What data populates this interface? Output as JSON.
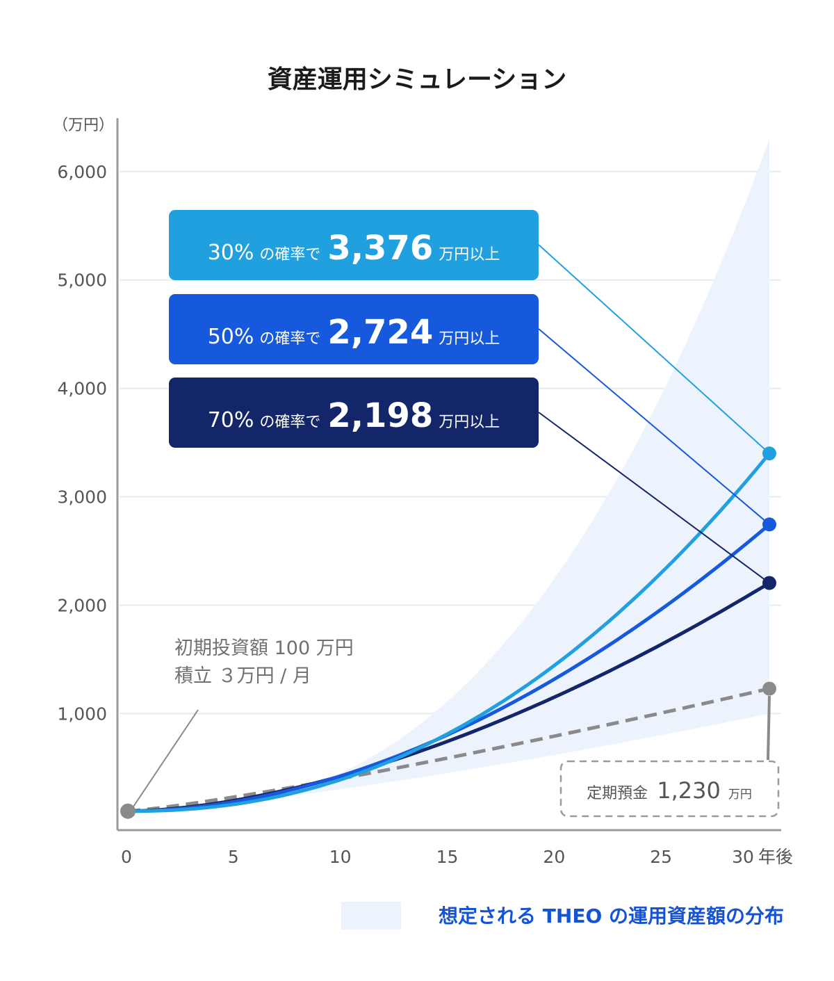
{
  "chart_data": {
    "type": "line",
    "title": "資産運用シミュレーション",
    "unit_label": "（万円）",
    "x_ticks": [
      "0",
      "5",
      "10",
      "15",
      "20",
      "25",
      "30"
    ],
    "x_suffix": "年後",
    "y_ticks": [
      "1,000",
      "2,000",
      "3,000",
      "4,000",
      "5,000",
      "6,000"
    ],
    "xlim": [
      0,
      31
    ],
    "ylim": [
      -30,
      6300
    ],
    "series": [
      {
        "name": "30%",
        "color": "#21a0e0",
        "start": 100,
        "end": 3400,
        "curve": 2.2
      },
      {
        "name": "50%",
        "color": "#1659dc",
        "start": 100,
        "end": 2745,
        "curve": 1.9
      },
      {
        "name": "70%",
        "color": "#14266a",
        "start": 100,
        "end": 2205,
        "curve": 1.7
      }
    ],
    "deposit": {
      "name": "定期預金",
      "color": "#8a8a8a",
      "start": 100,
      "end": 1230
    },
    "distribution": {
      "upper_end": 6300,
      "lower_end": 1000
    },
    "boxes": [
      {
        "color": "#21a0e0",
        "pct": "30%",
        "middle": "の確率で",
        "value": "3,376",
        "suffix": "万円以上"
      },
      {
        "color": "#1659dc",
        "pct": "50%",
        "middle": "の確率で",
        "value": "2,724",
        "suffix": "万円以上"
      },
      {
        "color": "#14266a",
        "pct": "70%",
        "middle": "の確率で",
        "value": "2,198",
        "suffix": "万円以上"
      }
    ],
    "annotation": {
      "line1": "初期投資額 100 万円",
      "line2": "積立 ３万円 / 月"
    },
    "deposit_box": {
      "label": "定期預金",
      "value": "1,230",
      "unit": "万円"
    },
    "legend": "想定される THEO の運用資産額の分布"
  }
}
